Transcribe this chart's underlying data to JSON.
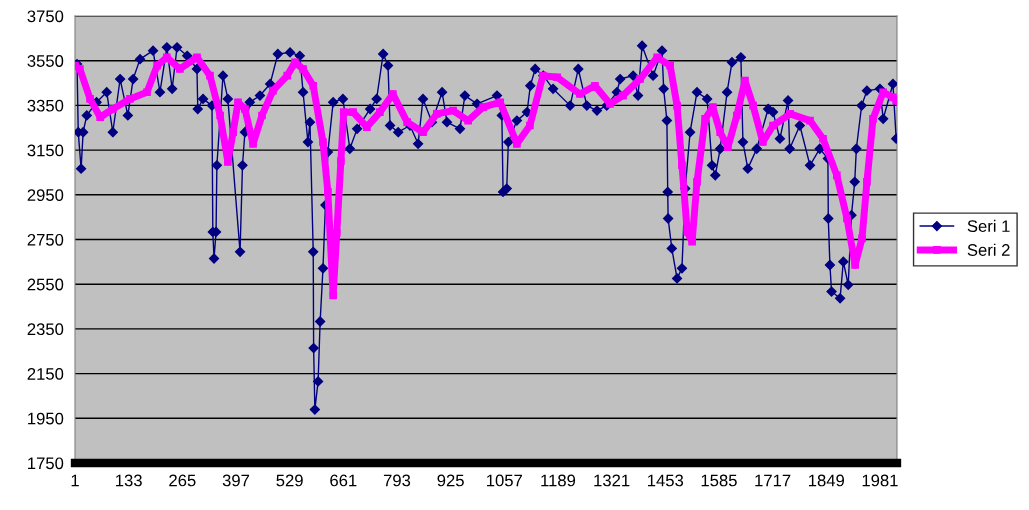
{
  "chart_data": {
    "type": "line",
    "xlim": [
      1,
      2023
    ],
    "xticks": [
      1,
      133,
      265,
      397,
      529,
      661,
      793,
      925,
      1057,
      1189,
      1321,
      1453,
      1585,
      1717,
      1849,
      1981
    ],
    "ylim": [
      1750,
      3750
    ],
    "yticks": [
      1750,
      1950,
      2150,
      2350,
      2550,
      2750,
      2950,
      3150,
      3350,
      3550,
      3750
    ],
    "grid": "y",
    "legend": "right",
    "line_style": "solid",
    "series": [
      {
        "name": "Seri 1",
        "color": "#000080",
        "marker": "diamond",
        "x": [
          6,
          9,
          16,
          21,
          30,
          54,
          79,
          94,
          112,
          131,
          144,
          161,
          193,
          210,
          227,
          240,
          252,
          277,
          301,
          303,
          316,
          338,
          340,
          343,
          348,
          350,
          365,
          377,
          407,
          413,
          419,
          431,
          456,
          481,
          500,
          530,
          554,
          562,
          574,
          579,
          587,
          588,
          591,
          599,
          604,
          611,
          617,
          623,
          636,
          660,
          677,
          695,
          727,
          743,
          759,
          771,
          776,
          796,
          825,
          845,
          857,
          879,
          904,
          916,
          948,
          960,
          990,
          1039,
          1051,
          1054,
          1063,
          1067,
          1088,
          1113,
          1121,
          1133,
          1153,
          1177,
          1219,
          1239,
          1260,
          1285,
          1309,
          1334,
          1342,
          1374,
          1386,
          1396,
          1423,
          1445,
          1449,
          1457,
          1459,
          1460,
          1469,
          1482,
          1494,
          1502,
          1514,
          1531,
          1556,
          1568,
          1576,
          1588,
          1605,
          1617,
          1639,
          1644,
          1656,
          1678,
          1706,
          1718,
          1735,
          1755,
          1759,
          1784,
          1809,
          1833,
          1853,
          1854,
          1858,
          1862,
          1883,
          1891,
          1903,
          1911,
          1919,
          1923,
          1936,
          1949,
          1981,
          1989,
          2013,
          2021
        ],
        "values": [
          3535,
          3230,
          3067,
          3230,
          3305,
          3364,
          3409,
          3230,
          3468,
          3305,
          3468,
          3557,
          3595,
          3409,
          3610,
          3424,
          3610,
          3572,
          3513,
          3334,
          3379,
          3349,
          2784,
          2665,
          2784,
          3082,
          3483,
          3379,
          2695,
          3082,
          3230,
          3364,
          3394,
          3446,
          3580,
          3587,
          3572,
          3409,
          3186,
          3275,
          2695,
          2264,
          1989,
          2115,
          2383,
          2621,
          2904,
          3141,
          3364,
          3379,
          3156,
          3245,
          3334,
          3379,
          3580,
          3528,
          3260,
          3230,
          3260,
          3178,
          3379,
          3275,
          3409,
          3275,
          3245,
          3394,
          3357,
          3394,
          3305,
          2963,
          2978,
          3186,
          3282,
          3320,
          3438,
          3513,
          3483,
          3424,
          3349,
          3513,
          3349,
          3327,
          3349,
          3409,
          3468,
          3483,
          3394,
          3617,
          3483,
          3595,
          3424,
          3282,
          2963,
          2844,
          2710,
          2576,
          2621,
          2978,
          3230,
          3409,
          3379,
          3082,
          3037,
          3156,
          3409,
          3543,
          3565,
          3186,
          3067,
          3156,
          3334,
          3320,
          3201,
          3372,
          3156,
          3260,
          3082,
          3156,
          3112,
          2844,
          2636,
          2517,
          2487,
          2651,
          2547,
          2859,
          3008,
          3156,
          3349,
          3416,
          3424,
          3290,
          3446,
          3201
        ]
      },
      {
        "name": "Seri 2",
        "color": "#ff00ff",
        "marker": "square",
        "x": [
          1,
          13,
          38,
          63,
          94,
          136,
          178,
          203,
          227,
          259,
          301,
          333,
          358,
          377,
          390,
          402,
          419,
          439,
          461,
          488,
          523,
          542,
          562,
          587,
          611,
          623,
          636,
          645,
          655,
          662,
          685,
          719,
          751,
          783,
          818,
          857,
          891,
          931,
          968,
          1005,
          1047,
          1088,
          1120,
          1152,
          1187,
          1243,
          1280,
          1317,
          1349,
          1391,
          1433,
          1465,
          1482,
          1494,
          1507,
          1519,
          1531,
          1551,
          1570,
          1588,
          1607,
          1629,
          1649,
          1669,
          1693,
          1718,
          1760,
          1809,
          1841,
          1875,
          1900,
          1920,
          1937,
          1949,
          1964,
          1989,
          2013,
          2021
        ],
        "values": [
          3528,
          3513,
          3379,
          3297,
          3334,
          3379,
          3409,
          3528,
          3565,
          3513,
          3565,
          3483,
          3305,
          3097,
          3230,
          3364,
          3334,
          3178,
          3305,
          3416,
          3483,
          3543,
          3513,
          3438,
          3186,
          2963,
          2500,
          2780,
          3100,
          3320,
          3320,
          3253,
          3320,
          3401,
          3275,
          3230,
          3312,
          3327,
          3282,
          3342,
          3364,
          3178,
          3260,
          3483,
          3476,
          3401,
          3438,
          3357,
          3394,
          3468,
          3565,
          3528,
          3349,
          3082,
          2784,
          2740,
          3008,
          3290,
          3342,
          3230,
          3163,
          3305,
          3461,
          3349,
          3186,
          3260,
          3312,
          3282,
          3201,
          3037,
          2844,
          2636,
          2755,
          3008,
          3290,
          3409,
          3386,
          3371
        ]
      }
    ]
  }
}
